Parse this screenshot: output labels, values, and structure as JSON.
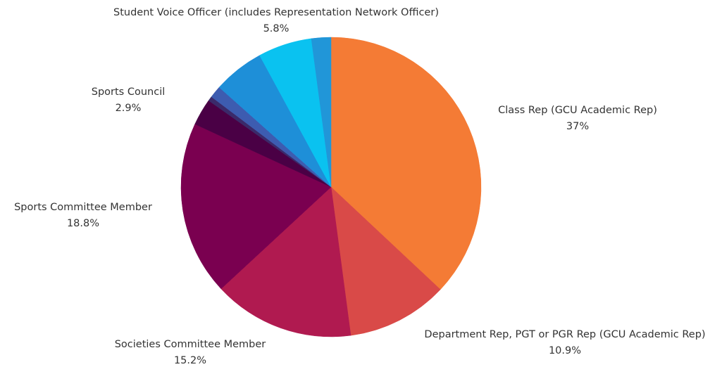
{
  "chart_data": {
    "type": "pie",
    "categories": [
      "Class Rep (GCU Academic Rep)",
      "Department Rep, PGT or PGR Rep (GCU Academic Rep)",
      "Societies Committee Member",
      "Sports Committee Member",
      "Sports Council",
      null,
      null,
      null,
      "Student Voice Officer (includes Representation Network Officer)",
      null
    ],
    "values": [
      37,
      10.9,
      15.2,
      18.8,
      2.9,
      0.5,
      1.3,
      5.5,
      5.8,
      2.1
    ],
    "value_labels": [
      "37%",
      "10.9%",
      "15.2%",
      "18.8%",
      "2.9%",
      null,
      null,
      null,
      "5.8%",
      null
    ],
    "colors": [
      "#f47b35",
      "#d94a48",
      "#b01a50",
      "#7a0050",
      "#4a0045",
      "#3a2a6a",
      "#3d5cb0",
      "#1e8fd8",
      "#0ac2f0",
      "#2196d8"
    ]
  }
}
